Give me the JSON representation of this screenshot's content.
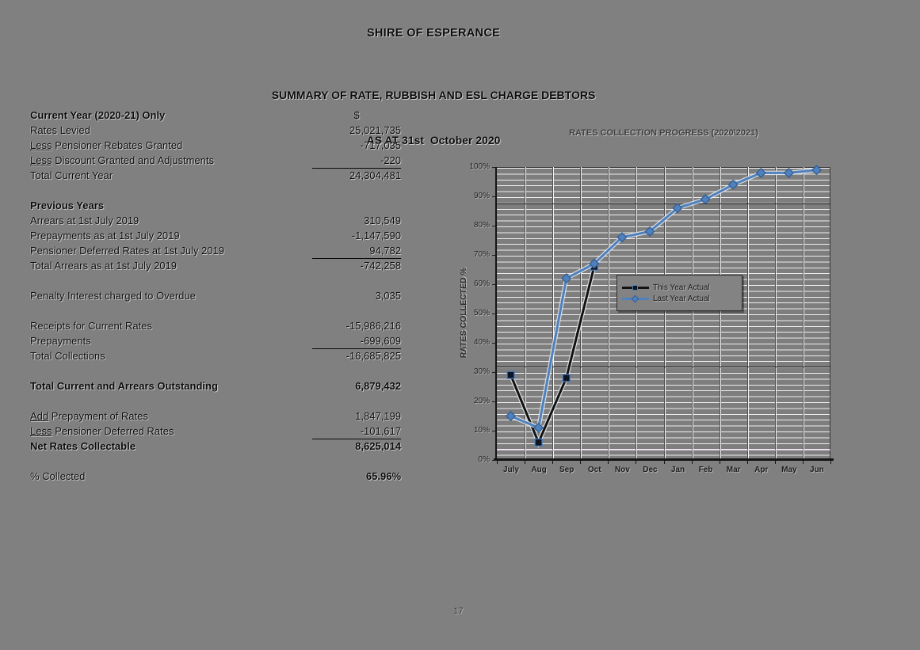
{
  "page": {
    "title": "SHIRE OF ESPERANCE",
    "subtitle_line1": "SUMMARY OF RATE, RUBBISH AND ESL CHARGE DEBTORS",
    "subtitle_line2": "AS AT 31st  October 2020",
    "page_number": "17"
  },
  "table": {
    "rows": [
      {
        "label": "Current Year (2020-21) Only",
        "label_bold": true,
        "value": "$",
        "value_center": true
      },
      {
        "label": "Rates Levied",
        "value": "25,021,735"
      },
      {
        "prefix": "Less",
        "label": " Pensioner Rebates Granted",
        "value": "-717,035"
      },
      {
        "prefix": "Less",
        "label": " Discount Granted and Adjustments",
        "value": "-220",
        "rule_below": true
      },
      {
        "label": "Total Current Year",
        "value": "24,304,481"
      },
      {
        "type": "spacer"
      },
      {
        "label": "Previous Years",
        "label_bold": true,
        "value": ""
      },
      {
        "label": "Arrears at 1st July 2019",
        "value": "310,549"
      },
      {
        "label": "Prepayments as at 1st July 2019",
        "value": "-1,147,590"
      },
      {
        "label": "Pensioner Deferred Rates at 1st July 2019",
        "value": "94,782",
        "rule_below": true
      },
      {
        "label": "Total Arrears as at 1st July 2019",
        "value": "-742,258"
      },
      {
        "type": "spacer"
      },
      {
        "label": "Penalty Interest charged to Overdue",
        "value": "3,035"
      },
      {
        "type": "spacer"
      },
      {
        "label": "Receipts for Current Rates",
        "value": "-15,986,216"
      },
      {
        "label": "Prepayments",
        "value": "-699,609",
        "rule_below": true
      },
      {
        "label": "Total Collections",
        "value": "-16,685,825"
      },
      {
        "type": "spacer"
      },
      {
        "label": "Total Current and Arrears Outstanding",
        "label_bold": true,
        "value": "6,879,432",
        "value_bold": true
      },
      {
        "type": "spacer"
      },
      {
        "prefix": "Add",
        "label": " Prepayment of Rates",
        "value": "1,847,199"
      },
      {
        "prefix": "Less",
        "label": " Pensioner Deferred Rates",
        "value": "-101,617",
        "rule_below": true
      },
      {
        "label": "Net Rates Collectable",
        "label_bold": true,
        "value": "8,625,014",
        "value_bold": true
      },
      {
        "type": "spacer"
      },
      {
        "label": "% Collected",
        "value": "65.96%",
        "value_bold": true
      }
    ]
  },
  "chart_data": {
    "type": "line",
    "title": "RATES COLLECTION PROGRESS (2020\\2021)",
    "ylabel": "RATES COLLECTED %",
    "categories": [
      "July",
      "Aug",
      "Sep",
      "Oct",
      "Nov",
      "Dec",
      "Jan",
      "Feb",
      "Mar",
      "Apr",
      "May",
      "Jun"
    ],
    "ylim": [
      0,
      100
    ],
    "ytick_step": 10,
    "ytick_suffix": "%",
    "grid": "on",
    "legend_position": "center",
    "series": [
      {
        "name": "This Year Actual",
        "color": "#121212",
        "marker": "square",
        "marker_color": "#0e1422",
        "marker_border": "#4f81bd",
        "values": [
          29,
          6,
          28,
          66,
          null,
          null,
          null,
          null,
          null,
          null,
          null,
          null
        ]
      },
      {
        "name": "Last Year Actual",
        "color": "#4f81bd",
        "marker": "diamond",
        "marker_color": "#4f81bd",
        "marker_border": "#355e91",
        "values": [
          15,
          11,
          62,
          67,
          76,
          78,
          86,
          89,
          94,
          98,
          98,
          99
        ]
      }
    ],
    "reference_lines": [
      {
        "y": 87.5,
        "color": "#1c1c1c"
      },
      {
        "y": 32,
        "color": "#1c1c1c"
      },
      {
        "y": 3.5,
        "color": "#d8c2d8"
      }
    ]
  }
}
